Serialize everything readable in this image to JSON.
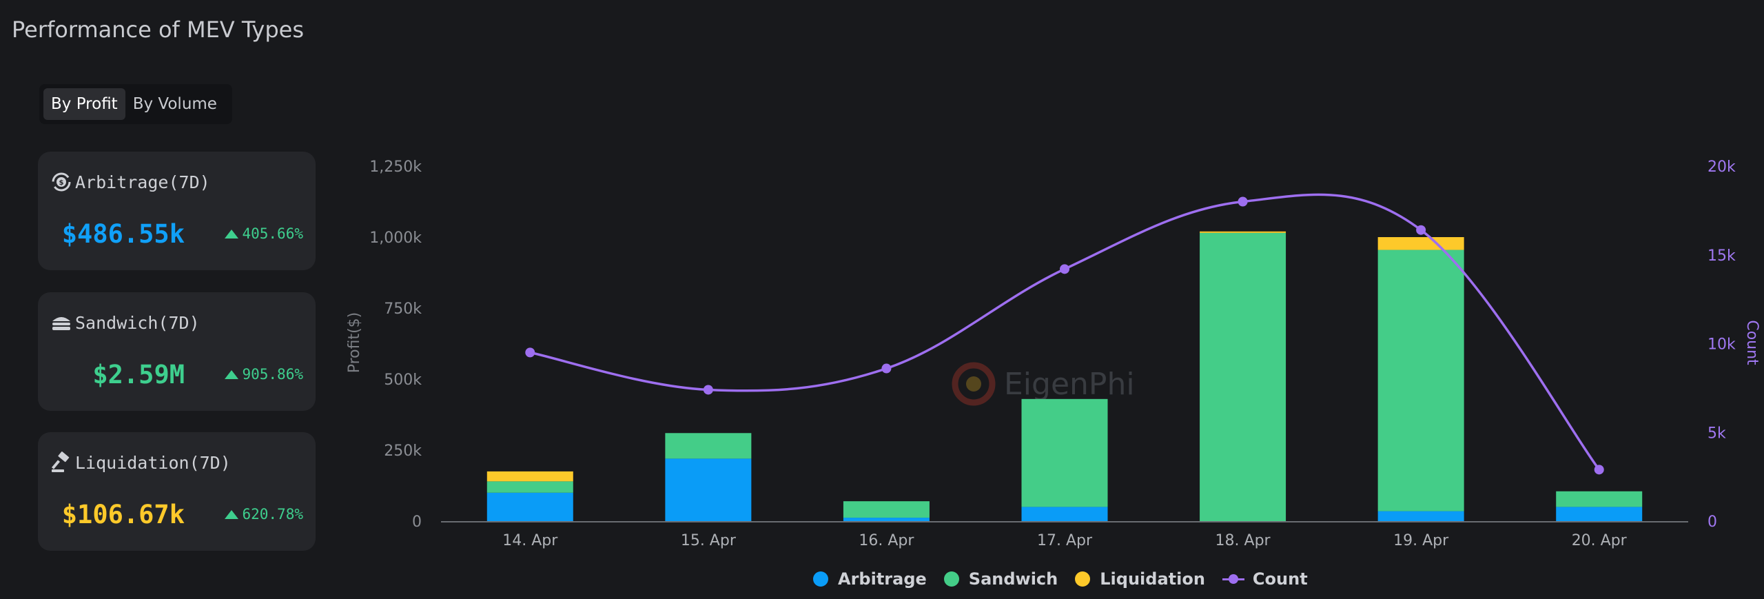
{
  "page": {
    "title": "Performance of MEV Types"
  },
  "tabs": [
    {
      "label": "By Profit",
      "active": true
    },
    {
      "label": "By Volume",
      "active": false
    }
  ],
  "cards": [
    {
      "label": "Arbitrage(7D)",
      "value": "$486.55k",
      "change": "405.66%",
      "color": "#10a0f8",
      "icon": "arbitrage-icon"
    },
    {
      "label": "Sandwich(7D)",
      "value": "$2.59M",
      "change": "905.86%",
      "color": "#3ecf8e",
      "icon": "sandwich-icon"
    },
    {
      "label": "Liquidation(7D)",
      "value": "$106.67k",
      "change": "620.78%",
      "color": "#fdc92a",
      "icon": "gavel-icon"
    }
  ],
  "watermark": "EigenPhi",
  "colors": {
    "arbitrage": "#0a9cf7",
    "sandwich": "#44cd88",
    "liquidation": "#fdc92a",
    "count": "#9e6ff0",
    "positive": "#3ecf8e"
  },
  "chart_data": {
    "type": "bar",
    "stacked": true,
    "categories": [
      "14. Apr",
      "15. Apr",
      "16. Apr",
      "17. Apr",
      "18. Apr",
      "19. Apr",
      "20. Apr"
    ],
    "series": [
      {
        "name": "Arbitrage",
        "type": "bar",
        "axis": "left",
        "values": [
          100000,
          220000,
          12000,
          50000,
          0,
          35000,
          50000
        ]
      },
      {
        "name": "Sandwich",
        "type": "bar",
        "axis": "left",
        "values": [
          40000,
          90000,
          58000,
          380000,
          1015000,
          920000,
          55000
        ]
      },
      {
        "name": "Liquidation",
        "type": "bar",
        "axis": "left",
        "values": [
          35000,
          0,
          0,
          0,
          5000,
          45000,
          0
        ]
      },
      {
        "name": "Count",
        "type": "line",
        "axis": "right",
        "values": [
          9500,
          7400,
          8600,
          14200,
          18000,
          16400,
          2900
        ]
      }
    ],
    "ylabel": "Profit($)",
    "y2label": "Count",
    "ylim": [
      0,
      1250000
    ],
    "y2lim": [
      0,
      20000
    ],
    "yticks": [
      "0",
      "250k",
      "500k",
      "750k",
      "1,000k",
      "1,250k"
    ],
    "y2ticks": [
      "0",
      "5k",
      "10k",
      "15k",
      "20k"
    ],
    "legend": "bottom",
    "grid": false
  }
}
